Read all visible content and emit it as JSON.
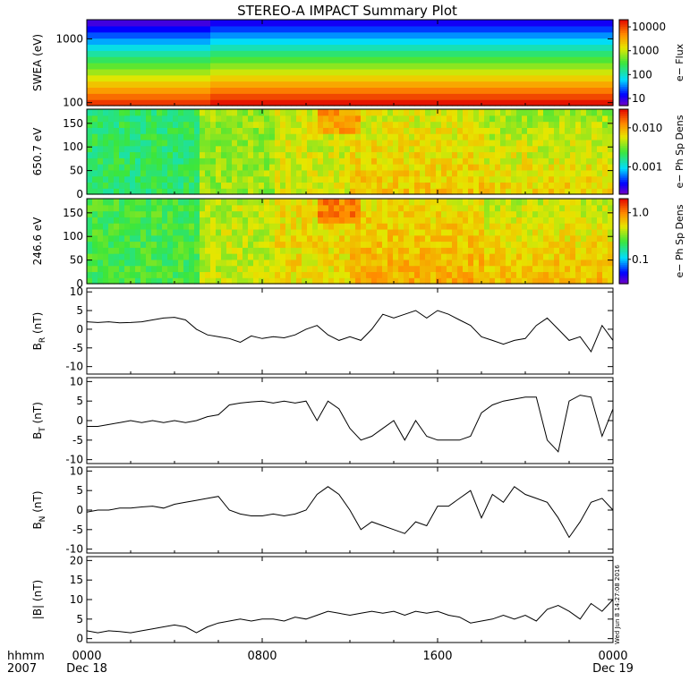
{
  "title": "STEREO-A IMPACT Summary Plot",
  "time_axis": {
    "ticks": [
      {
        "hour": 0,
        "label": "0000",
        "date": "Dec 18"
      },
      {
        "hour": 8,
        "label": "0800",
        "date": ""
      },
      {
        "hour": 16,
        "label": "1600",
        "date": ""
      },
      {
        "hour": 24,
        "label": "0000",
        "date": "Dec 19"
      }
    ],
    "left_labels": [
      "hhmm",
      "2007"
    ],
    "range_hours": [
      0,
      24
    ]
  },
  "timestamp": "Wed Jun  8 14:27:08 2016",
  "colors": {
    "trace": "#000000",
    "background": "#ffffff"
  },
  "chart_data": [
    {
      "type": "heatmap",
      "id": "swea",
      "ylabel": "SWEA (eV)",
      "yscale": "log",
      "ylim": [
        90,
        2000
      ],
      "yticks": [
        {
          "v": 100,
          "label": "100"
        },
        {
          "v": 1000,
          "label": "1000"
        }
      ],
      "colorbar": {
        "label": "e− Flux",
        "scale": "log",
        "range": [
          5,
          20000
        ],
        "ticks": [
          {
            "v": 10,
            "label": "10"
          },
          {
            "v": 100,
            "label": "100"
          },
          {
            "v": 1000,
            "label": "1000"
          },
          {
            "v": 10000,
            "label": "10000"
          }
        ]
      }
    },
    {
      "type": "heatmap",
      "id": "pad650",
      "ylabel": "650.7 eV",
      "ylim": [
        0,
        180
      ],
      "yticks": [
        {
          "v": 0,
          "label": "0"
        },
        {
          "v": 50,
          "label": "50"
        },
        {
          "v": 100,
          "label": "100"
        },
        {
          "v": 150,
          "label": "150"
        }
      ],
      "colorbar": {
        "label": "e− Ph Sp Dens",
        "scale": "log",
        "range": [
          0.0002,
          0.03
        ],
        "ticks": [
          {
            "v": 0.001,
            "label": "0.001"
          },
          {
            "v": 0.01,
            "label": "0.010"
          }
        ]
      }
    },
    {
      "type": "heatmap",
      "id": "pad246",
      "ylabel": "246.6 eV",
      "ylim": [
        0,
        180
      ],
      "yticks": [
        {
          "v": 0,
          "label": "0"
        },
        {
          "v": 50,
          "label": "50"
        },
        {
          "v": 100,
          "label": "100"
        },
        {
          "v": 150,
          "label": "150"
        }
      ],
      "colorbar": {
        "label": "e− Ph Sp Dens",
        "scale": "log",
        "range": [
          0.03,
          2
        ],
        "ticks": [
          {
            "v": 0.1,
            "label": "0.1"
          },
          {
            "v": 1.0,
            "label": "1.0"
          }
        ]
      }
    },
    {
      "type": "line",
      "id": "br",
      "ylabel": "B",
      "ysub": "R",
      "yunit": "(nT)",
      "ylim": [
        -12,
        11
      ],
      "yticks": [
        -10,
        -5,
        0,
        5,
        10
      ],
      "x": [
        0,
        0.5,
        1,
        1.5,
        2,
        2.5,
        3,
        3.5,
        4,
        4.5,
        5,
        5.5,
        6,
        6.5,
        7,
        7.5,
        8,
        8.5,
        9,
        9.5,
        10,
        10.5,
        11,
        11.5,
        12,
        12.5,
        13,
        13.5,
        14,
        14.5,
        15,
        15.5,
        16,
        16.5,
        17,
        17.5,
        18,
        18.5,
        19,
        19.5,
        20,
        20.5,
        21,
        21.5,
        22,
        22.5,
        23,
        23.5,
        24
      ],
      "y": [
        2,
        1.8,
        2,
        1.7,
        1.8,
        2,
        2.5,
        3,
        3.2,
        2.5,
        0,
        -1.5,
        -2,
        -2.5,
        -3.5,
        -1.8,
        -2.5,
        -2,
        -2.3,
        -1.5,
        0,
        1,
        -1.5,
        -3,
        -2,
        -3,
        0,
        4,
        3,
        4,
        5,
        3,
        5,
        4,
        2.5,
        1,
        -2,
        -3,
        -4,
        -3,
        -2.5,
        1,
        3,
        0,
        -3,
        -2,
        -6,
        1,
        -3
      ]
    },
    {
      "type": "line",
      "id": "bt",
      "ylabel": "B",
      "ysub": "T",
      "yunit": "(nT)",
      "ylim": [
        -11,
        11
      ],
      "yticks": [
        -10,
        -5,
        0,
        5,
        10
      ],
      "x": [
        0,
        0.5,
        1,
        1.5,
        2,
        2.5,
        3,
        3.5,
        4,
        4.5,
        5,
        5.5,
        6,
        6.5,
        7,
        7.5,
        8,
        8.5,
        9,
        9.5,
        10,
        10.5,
        11,
        11.5,
        12,
        12.5,
        13,
        13.5,
        14,
        14.5,
        15,
        15.5,
        16,
        16.5,
        17,
        17.5,
        18,
        18.5,
        19,
        19.5,
        20,
        20.5,
        21,
        21.5,
        22,
        22.5,
        23,
        23.5,
        24
      ],
      "y": [
        -1.5,
        -1.5,
        -1,
        -0.5,
        0,
        -0.5,
        0,
        -0.5,
        0,
        -0.5,
        0,
        1,
        1.5,
        4,
        4.5,
        4.8,
        5,
        4.5,
        5,
        4.5,
        5,
        0,
        5,
        3,
        -2,
        -5,
        -4,
        -2,
        0,
        -5,
        0,
        -4,
        -5,
        -5,
        -5,
        -4,
        2,
        4,
        5,
        5.5,
        6,
        6,
        -5,
        -8,
        5,
        6.5,
        6,
        -4,
        3
      ]
    },
    {
      "type": "line",
      "id": "bn",
      "ylabel": "B",
      "ysub": "N",
      "yunit": "(nT)",
      "ylim": [
        -11,
        11
      ],
      "yticks": [
        -10,
        -5,
        0,
        5,
        10
      ],
      "x": [
        0,
        0.5,
        1,
        1.5,
        2,
        2.5,
        3,
        3.5,
        4,
        4.5,
        5,
        5.5,
        6,
        6.5,
        7,
        7.5,
        8,
        8.5,
        9,
        9.5,
        10,
        10.5,
        11,
        11.5,
        12,
        12.5,
        13,
        13.5,
        14,
        14.5,
        15,
        15.5,
        16,
        16.5,
        17,
        17.5,
        18,
        18.5,
        19,
        19.5,
        20,
        20.5,
        21,
        21.5,
        22,
        22.5,
        23,
        23.5,
        24
      ],
      "y": [
        -0.5,
        0,
        0,
        0.5,
        0.5,
        0.8,
        1,
        0.5,
        1.5,
        2,
        2.5,
        3,
        3.5,
        0,
        -1,
        -1.5,
        -1.5,
        -1,
        -1.5,
        -1,
        0,
        4,
        6,
        4,
        0,
        -5,
        -3,
        -4,
        -5,
        -6,
        -3,
        -4,
        1,
        1,
        3,
        5,
        -2,
        4,
        2,
        6,
        4,
        3,
        2,
        -2,
        -7,
        -3,
        2,
        3,
        0
      ]
    },
    {
      "type": "line",
      "id": "bmag",
      "ylabel": "|B|",
      "yunit": "(nT)",
      "ylim": [
        -1,
        21
      ],
      "yticks": [
        0,
        5,
        10,
        15,
        20
      ],
      "x": [
        0,
        0.5,
        1,
        1.5,
        2,
        2.5,
        3,
        3.5,
        4,
        4.5,
        5,
        5.5,
        6,
        6.5,
        7,
        7.5,
        8,
        8.5,
        9,
        9.5,
        10,
        10.5,
        11,
        11.5,
        12,
        12.5,
        13,
        13.5,
        14,
        14.5,
        15,
        15.5,
        16,
        16.5,
        17,
        17.5,
        18,
        18.5,
        19,
        19.5,
        20,
        20.5,
        21,
        21.5,
        22,
        22.5,
        23,
        23.5,
        24
      ],
      "y": [
        2,
        1.5,
        2,
        1.8,
        1.5,
        2,
        2.5,
        3,
        3.5,
        3,
        1.5,
        3,
        4,
        4.5,
        5,
        4.5,
        5,
        5,
        4.5,
        5.5,
        5,
        6,
        7,
        6.5,
        6,
        6.5,
        7,
        6.5,
        7,
        6,
        7,
        6.5,
        7,
        6,
        5.5,
        4,
        4.5,
        5,
        6,
        5,
        6,
        4.5,
        7.5,
        8.5,
        7,
        5,
        9,
        7,
        10
      ]
    }
  ]
}
